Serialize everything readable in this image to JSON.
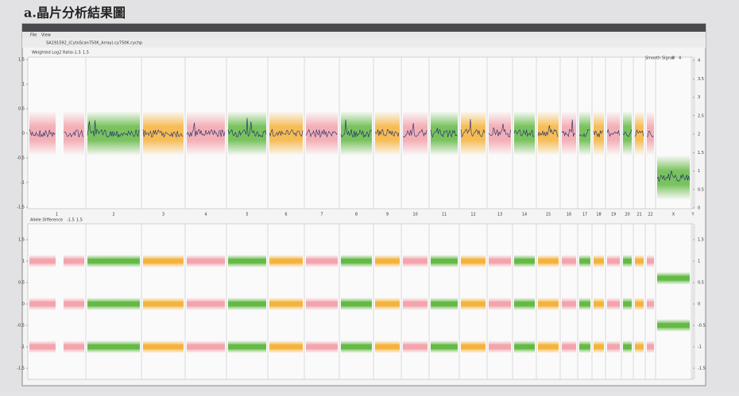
{
  "heading": "a.晶片分析結果圖",
  "window": {
    "menu": [
      "File",
      "View"
    ],
    "file": "SA191592_(CytoScan750K_Array).cy750K.cychp"
  },
  "panel1": {
    "label": "Weighted Log2 Ratio",
    "range": [
      "-1.5",
      "1.5"
    ],
    "right_label": "Smooth Signal",
    "right_range": [
      "0",
      "4"
    ],
    "yticks": [
      1.5,
      1,
      0.5,
      0,
      -0.5,
      -1,
      -1.5
    ],
    "y2ticks": [
      4,
      3.5,
      3,
      2.5,
      2,
      1.5,
      1,
      0.5,
      0
    ]
  },
  "panel2": {
    "label": "Allele Difference",
    "range": [
      "-1.5",
      "1.5"
    ],
    "yticks": [
      1.5,
      1,
      0.5,
      0,
      -0.5,
      -1,
      -1.5
    ],
    "y2ticks": [
      1.5,
      1,
      0.5,
      0,
      -0.5,
      -1,
      -1.5
    ]
  },
  "band_colors": [
    "#f2a2aa",
    "#62b842",
    "#f5b23a"
  ],
  "chromosomes": [
    "1",
    "2",
    "3",
    "4",
    "5",
    "6",
    "7",
    "8",
    "9",
    "10",
    "11",
    "12",
    "13",
    "14",
    "15",
    "16",
    "17",
    "18",
    "19",
    "20",
    "21",
    "22",
    "X",
    "Y"
  ]
}
